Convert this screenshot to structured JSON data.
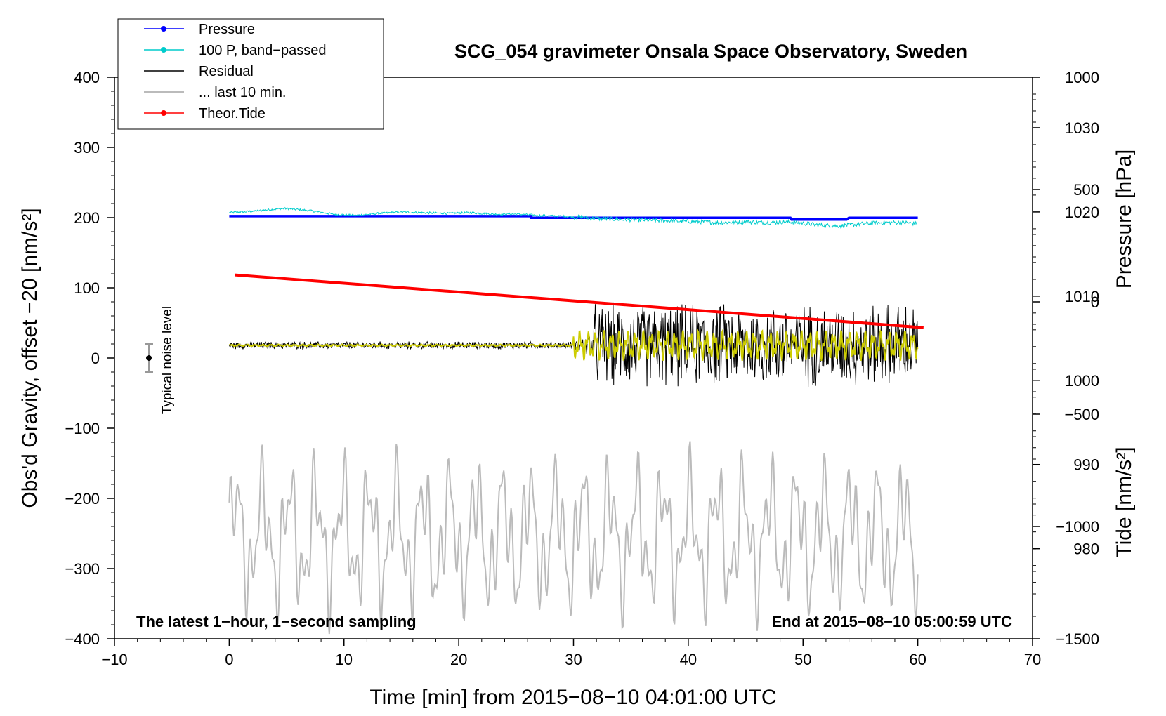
{
  "chart_data": {
    "type": "line",
    "title": "SCG_054 gravimeter Onsala Space Observatory, Sweden",
    "xlabel": "Time [min] from 2015−08−10 04:01:00 UTC",
    "ylabel_left": "Obs'd Gravity, offset −20 [nm/s²]",
    "ylabel_pressure": "Pressure [hPa]",
    "ylabel_tide": "Tide [nm/s²]",
    "xlim": [
      -10,
      70
    ],
    "ylim": [
      -400,
      400
    ],
    "pressure_lim": [
      969.3,
      1036
    ],
    "tide_lim": [
      -1500,
      1000
    ],
    "x_ticks": [
      -10,
      0,
      10,
      20,
      30,
      40,
      50,
      60,
      70
    ],
    "x_tick_labels": [
      "−10",
      "0",
      "10",
      "20",
      "30",
      "40",
      "50",
      "60",
      "70"
    ],
    "y_ticks": [
      -400,
      -300,
      -200,
      -100,
      0,
      100,
      200,
      300,
      400
    ],
    "y_tick_labels": [
      "−400",
      "−300",
      "−200",
      "−100",
      "0",
      "100",
      "200",
      "300",
      "400"
    ],
    "pressure_ticks": [
      980,
      990,
      1000,
      1010,
      1020,
      1030
    ],
    "pressure_tick_labels": [
      "980",
      "990",
      "1000",
      "1010",
      "1020",
      "1030"
    ],
    "tide_ticks": [
      -1500,
      -1000,
      -500,
      0,
      500,
      1000
    ],
    "tide_tick_labels": [
      "−1500",
      "−1000",
      "−500",
      "0",
      "500",
      "1000"
    ],
    "annotation_left": "The latest 1−hour, 1−second sampling",
    "annotation_right": "End at 2015−08−10 05:00:59 UTC",
    "noise_label": "Typical noise level",
    "noise_bar": {
      "x": -7,
      "center": 0,
      "halfwidth": 20
    },
    "legend": [
      {
        "label": "Pressure",
        "color": "#0000ff",
        "marker": true
      },
      {
        "label": "100 P, band−passed",
        "color": "#00cccc",
        "marker": true
      },
      {
        "label": "Residual",
        "color": "#000000",
        "marker": false
      },
      {
        "label": "... last 10 min.",
        "color": "#bbbbbb",
        "marker": false
      },
      {
        "label": "Theor.Tide",
        "color": "#ff0000",
        "marker": true
      }
    ],
    "series": [
      {
        "name": "Pressure",
        "axis": "pressure",
        "color": "#0000ff",
        "x": [
          0,
          26.3,
          26.3,
          48.9,
          49.0,
          53.8,
          54.0,
          60
        ],
        "y": [
          1019.5,
          1019.5,
          1019.3,
          1019.3,
          1019.1,
          1019.1,
          1019.3,
          1019.3
        ]
      },
      {
        "name": "100 P, band-passed",
        "axis": "left",
        "color": "#00cccc",
        "x": [
          0,
          2,
          4,
          5,
          7,
          9,
          11,
          13,
          15,
          17,
          19,
          21,
          23,
          25,
          27,
          29,
          31,
          33,
          35,
          37,
          39,
          41,
          43,
          45,
          47,
          49,
          51,
          53,
          55,
          57,
          59,
          60
        ],
        "y": [
          207,
          209,
          212,
          213,
          210,
          205,
          203,
          206,
          208,
          207,
          206,
          207,
          205,
          205,
          203,
          202,
          200,
          198,
          197,
          196,
          195,
          194,
          193,
          194,
          193,
          194,
          190,
          188,
          191,
          193,
          193,
          191
        ]
      },
      {
        "name": "Residual",
        "axis": "left",
        "color": "#000000",
        "x": [
          0,
          30,
          32,
          44.6,
          49.7,
          50,
          60
        ],
        "y": [
          18,
          18,
          18,
          18,
          18,
          18,
          20
        ],
        "quiet_amplitude": 5,
        "active_amplitude": 55
      },
      {
        "name": "Residual smoothed",
        "axis": "left",
        "color": "#cccc00",
        "x": [
          0,
          30,
          60
        ],
        "y": [
          18,
          18,
          18
        ]
      },
      {
        "name": "... last 10 min.",
        "axis": "left",
        "color": "#bbbbbb",
        "x": [
          0,
          60
        ],
        "y": [
          -255,
          -255
        ],
        "amplitude": 120
      },
      {
        "name": "Theor.Tide",
        "axis": "tide",
        "color": "#ff0000",
        "x": [
          0.5,
          60.5
        ],
        "y": [
          120,
          -115
        ]
      }
    ]
  }
}
